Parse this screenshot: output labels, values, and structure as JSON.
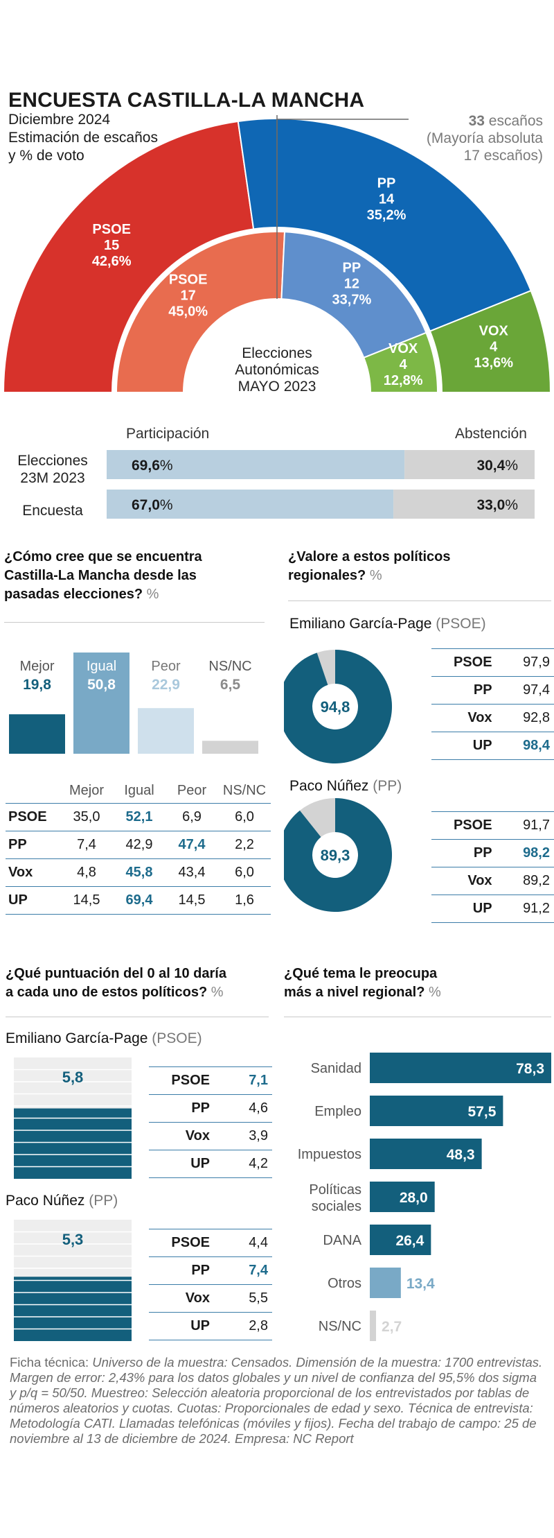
{
  "header": {
    "title": "ENCUESTA CASTILLA-LA MANCHA",
    "date": "Diciembre 2024",
    "subtitle_1": "Estimación de escaños",
    "subtitle_2": "y % de voto",
    "total_seats": "33",
    "seats_word": "escaños",
    "majority_1": "(Mayoría absoluta",
    "majority_2": "17 escaños)"
  },
  "center_label": [
    "Elecciones",
    "Autonómicas",
    "MAYO 2023"
  ],
  "chart_data": [
    {
      "type": "pie",
      "title": "Estimación de escaños y % de voto (Encuesta)",
      "total": 33,
      "slices": [
        {
          "party": "PSOE",
          "seats": 15,
          "vote": "42,6%",
          "color": "#d7322b"
        },
        {
          "party": "PP",
          "seats": 14,
          "vote": "35,2%",
          "color": "#0f67b4"
        },
        {
          "party": "VOX",
          "seats": 4,
          "vote": "13,6%",
          "color": "#6aa638"
        }
      ]
    },
    {
      "type": "pie",
      "title": "Elecciones Autonómicas MAYO 2023",
      "total": 33,
      "slices": [
        {
          "party": "PSOE",
          "seats": 17,
          "vote": "45,0%",
          "color": "#e86c4f"
        },
        {
          "party": "PP",
          "seats": 12,
          "vote": "33,7%",
          "color": "#5f8fcc"
        },
        {
          "party": "VOX",
          "seats": 4,
          "vote": "12,8%",
          "color": "#7db846"
        }
      ]
    },
    {
      "type": "bar",
      "title": "Participación / Abstención",
      "headers": [
        "Participación",
        "Abstención"
      ],
      "rows": [
        {
          "label": "Elecciones 23M 2023",
          "label_1": "Elecciones",
          "label_2": "23M 2023",
          "participation": 69.6,
          "participation_num": "69,6",
          "abstention_num": "30,4"
        },
        {
          "label": "Encuesta",
          "participation": 67.0,
          "participation_num": "67,0",
          "abstention_num": "33,0"
        }
      ],
      "unit": "%"
    },
    {
      "type": "bar",
      "title": "¿Cómo cree que se encuentra Castilla-La Mancha desde las pasadas elecciones?",
      "unit": "%",
      "categories": [
        "Mejor",
        "Igual",
        "Peor",
        "NS/NC"
      ],
      "values": [
        19.8,
        50.8,
        22.9,
        6.5
      ],
      "value_labels": [
        "19,8",
        "50,8",
        "22,9",
        "6,5"
      ],
      "ylim": [
        0,
        50.8
      ]
    },
    {
      "type": "bar",
      "title": "¿Qué tema le preocupa más a nivel regional?",
      "unit": "%",
      "categories": [
        "Sanidad",
        "Empleo",
        "Impuestos",
        "Políticas sociales",
        "DANA",
        "Otros",
        "NS/NC"
      ],
      "values": [
        78.3,
        57.5,
        48.3,
        28.0,
        26.4,
        13.4,
        2.7
      ],
      "value_labels": [
        "78,3",
        "57,5",
        "48,3",
        "28,0",
        "26,4",
        "13,4",
        "2,7"
      ],
      "xlim": [
        0,
        78.3
      ]
    },
    {
      "type": "pie",
      "title": "Valoración Emiliano García-Page",
      "values": [
        94.8,
        5.2
      ],
      "value_label": "94,8"
    },
    {
      "type": "pie",
      "title": "Valoración Paco Núñez",
      "values": [
        89.3,
        10.7
      ],
      "value_label": "89,3"
    },
    {
      "type": "bar",
      "title": "Puntuación Emiliano García-Page",
      "values": [
        5.8
      ],
      "value_label": "5,8",
      "ylim": [
        0,
        10
      ]
    },
    {
      "type": "bar",
      "title": "Puntuación Paco Núñez",
      "values": [
        5.3
      ],
      "value_label": "5,3",
      "ylim": [
        0,
        10
      ]
    }
  ],
  "q1": {
    "line1": "¿Cómo cree que se encuentra",
    "line2": "Castilla-La Mancha desde las",
    "line3": "pasadas elecciones?",
    "pct": "%",
    "table_headers": [
      "Mejor",
      "Igual",
      "Peor",
      "NS/NC"
    ],
    "rows": [
      {
        "party": "PSOE",
        "vals": [
          "35,0",
          "52,1",
          "6,9",
          "6,0"
        ]
      },
      {
        "party": "PP",
        "vals": [
          "7,4",
          "42,9",
          "47,4",
          "2,2"
        ]
      },
      {
        "party": "Vox",
        "vals": [
          "4,8",
          "45,8",
          "43,4",
          "6,0"
        ]
      },
      {
        "party": "UP",
        "vals": [
          "14,5",
          "69,4",
          "14,5",
          "1,6"
        ]
      }
    ]
  },
  "q2": {
    "line1": "¿Valore a estos políticos",
    "line2": "regionales?",
    "pct": "%",
    "pol1": {
      "name": "Emiliano García-Page",
      "party": "(PSOE)",
      "rows": [
        {
          "party": "PSOE",
          "val": "97,9"
        },
        {
          "party": "PP",
          "val": "97,4"
        },
        {
          "party": "Vox",
          "val": "92,8"
        },
        {
          "party": "UP",
          "val": "98,4"
        }
      ]
    },
    "pol2": {
      "name": "Paco Núñez",
      "party": "(PP)",
      "rows": [
        {
          "party": "PSOE",
          "val": "91,7"
        },
        {
          "party": "PP",
          "val": "98,2"
        },
        {
          "party": "Vox",
          "val": "89,2"
        },
        {
          "party": "UP",
          "val": "91,2"
        }
      ]
    }
  },
  "q3": {
    "line1": "¿Qué puntuación del 0 al 10 daría",
    "line2": "a cada uno de estos políticos?",
    "pct": "%",
    "pol1": {
      "name": "Emiliano García-Page",
      "party": "(PSOE)",
      "rows": [
        {
          "party": "PSOE",
          "val": "7,1"
        },
        {
          "party": "PP",
          "val": "4,6"
        },
        {
          "party": "Vox",
          "val": "3,9"
        },
        {
          "party": "UP",
          "val": "4,2"
        }
      ]
    },
    "pol2": {
      "name": "Paco Núñez",
      "party": "(PP)",
      "rows": [
        {
          "party": "PSOE",
          "val": "4,4"
        },
        {
          "party": "PP",
          "val": "7,4"
        },
        {
          "party": "Vox",
          "val": "5,5"
        },
        {
          "party": "UP",
          "val": "2,8"
        }
      ]
    }
  },
  "q4": {
    "line1": "¿Qué tema le preocupa",
    "line2": "más a nivel regional?",
    "pct": "%"
  },
  "footer": {
    "label": "Ficha técnica:",
    "text": "Universo de la muestra: Censados. Dimensión de la muestra: 1700 entrevistas. Margen de error: 2,43% para los datos globales y un nivel de confianza del 95,5% dos sigma y p/q = 50/50. Muestreo: Selección aleatoria proporcional de los entrevistados por tablas de números aleatorios y cuotas. Cuotas: Proporcionales de edad y sexo. Técnica de entrevista: Metodología CATI. Llamadas telefónicas (móviles y fijos). Fecha del trabajo de campo: 25 de noviembre al 13 de diciembre de 2024. Empresa: NC Report"
  },
  "colors": {
    "dark_teal": "#135f7c",
    "mid_blue": "#79a9c6",
    "light_blue": "#cfe0ec",
    "grey": "#d3d3d3",
    "bar_blue": "#b8cfdf"
  }
}
